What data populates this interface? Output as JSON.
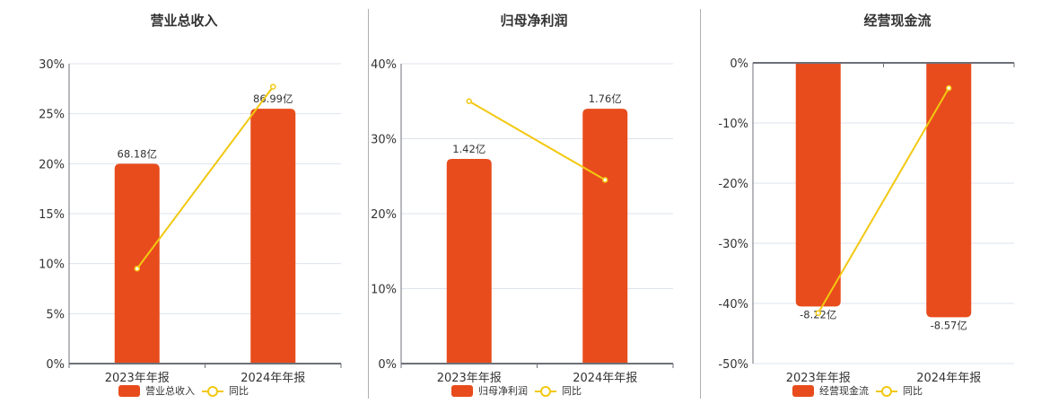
{
  "colors": {
    "bar": "#e84c1c",
    "line": "#f2c811",
    "grid": "#dde3ee",
    "axis": "#6e7079"
  },
  "legend_yoy_label": "同比",
  "chart_data": [
    {
      "type": "bar+line",
      "title": "营业总收入",
      "categories": [
        "2023年年报",
        "2024年年报"
      ],
      "bar_series": {
        "name": "营业总收入",
        "labels": [
          "68.18亿",
          "86.99亿"
        ],
        "values": [
          68.18,
          86.99
        ]
      },
      "line_series": {
        "name": "同比",
        "values": [
          9.5,
          27.7
        ]
      },
      "ylim": [
        0,
        30
      ],
      "yticks": [
        "0%",
        "5%",
        "10%",
        "15%",
        "20%",
        "25%",
        "30%"
      ],
      "bar_display_pct": [
        20.0,
        25.5
      ],
      "grid": true,
      "legend_position": "bottom"
    },
    {
      "type": "bar+line",
      "title": "归母净利润",
      "categories": [
        "2023年年报",
        "2024年年报"
      ],
      "bar_series": {
        "name": "归母净利润",
        "labels": [
          "1.42亿",
          "1.76亿"
        ],
        "values": [
          1.42,
          1.76
        ]
      },
      "line_series": {
        "name": "同比",
        "values": [
          35.0,
          24.5
        ]
      },
      "ylim": [
        0,
        40
      ],
      "yticks": [
        "0%",
        "10%",
        "20%",
        "30%",
        "40%"
      ],
      "bar_display_pct": [
        27.3,
        34.0
      ],
      "grid": true,
      "legend_position": "bottom"
    },
    {
      "type": "bar+line",
      "title": "经营现金流",
      "categories": [
        "2023年年报",
        "2024年年报"
      ],
      "bar_series": {
        "name": "经营现金流",
        "labels": [
          "-8.22亿",
          "-8.57亿"
        ],
        "values": [
          -8.22,
          -8.57
        ]
      },
      "line_series": {
        "name": "同比",
        "values": [
          -41.6,
          -4.2
        ]
      },
      "ylim": [
        -50,
        0
      ],
      "yticks": [
        "-50%",
        "-40%",
        "-30%",
        "-20%",
        "-10%",
        "0%"
      ],
      "bar_display_pct": [
        -40.5,
        -42.3
      ],
      "grid": true,
      "legend_position": "bottom"
    }
  ]
}
